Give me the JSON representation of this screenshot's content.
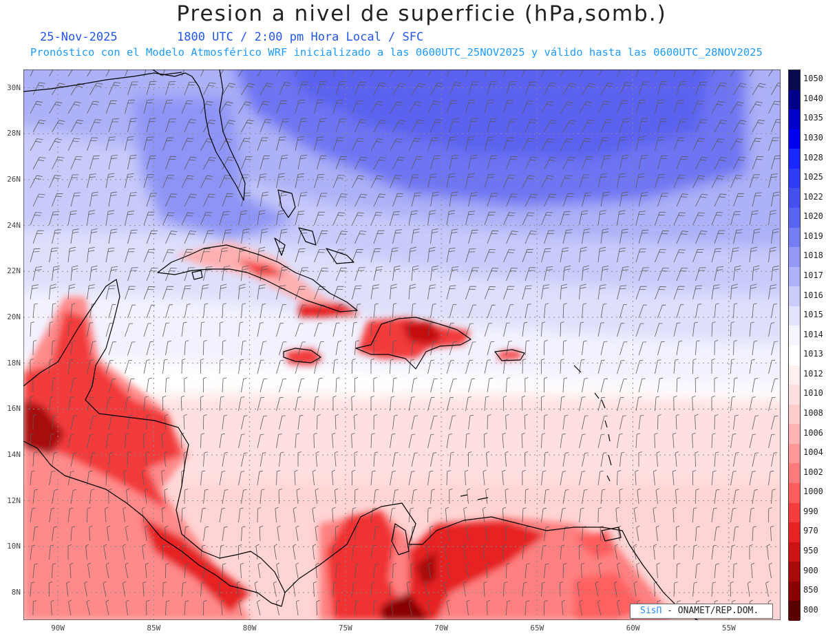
{
  "header": {
    "title": "Presion a nivel de superficie (hPa,somb.)",
    "date": "25-Nov-2025",
    "time": "1800 UTC / 2:00 pm Hora Local / SFC",
    "forecast_info": "Pronóstico con el Modelo Atmosférico WRF inicializado a las 0600UTC_25NOV2025 y válido hasta las  0600UTC_28NOV2025"
  },
  "map": {
    "lat_labels": [
      "30N",
      "28N",
      "26N",
      "24N",
      "22N",
      "20N",
      "18N",
      "16N",
      "14N",
      "12N",
      "10N",
      "8N"
    ],
    "lon_labels": [
      "90W",
      "85W",
      "80W",
      "75W",
      "70W",
      "65W",
      "60W",
      "55W"
    ],
    "extent": {
      "lon_min": -91.8,
      "lon_max": -52.3,
      "lat_min": 6.8,
      "lat_max": 30.8
    }
  },
  "legend": {
    "levels": [
      "1050",
      "1040",
      "1035",
      "1030",
      "1028",
      "1025",
      "1022",
      "1020",
      "1019",
      "1018",
      "1017",
      "1016",
      "1015",
      "1014",
      "1013",
      "1012",
      "1010",
      "1008",
      "1006",
      "1004",
      "1002",
      "1000",
      "990",
      "970",
      "950",
      "900",
      "850",
      "800"
    ],
    "colors": [
      "#0a0a4e",
      "#00008b",
      "#0000c8",
      "#0000f0",
      "#1a26ff",
      "#2f3cf5",
      "#4450f0",
      "#5a64f2",
      "#767ef5",
      "#9499f7",
      "#b0b3f8",
      "#cacdfa",
      "#e2e3fc",
      "#f5f5ff",
      "#ffffff",
      "#fff0f0",
      "#ffe0e0",
      "#ffcccc",
      "#ffb3b3",
      "#ff9999",
      "#ff7a7a",
      "#ff5c5c",
      "#f53d3d",
      "#e62222",
      "#cc1414",
      "#a80a0a",
      "#8a0000",
      "#5a0000"
    ]
  },
  "credit": {
    "brand": "SisΠ",
    "org": "- ONAMET/REP.DOM."
  }
}
